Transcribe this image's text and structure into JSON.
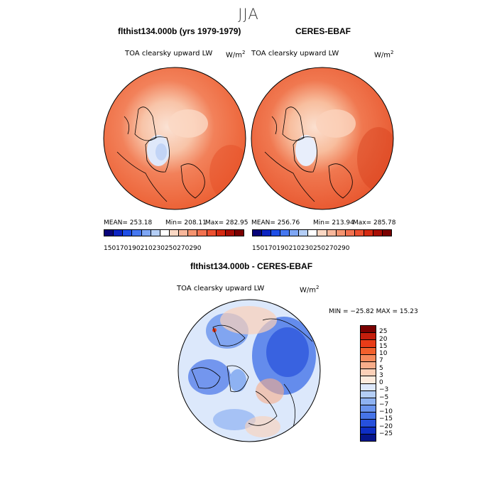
{
  "season": "JJA",
  "panels": [
    {
      "title": "flthist134.000b (yrs 1979-1979)",
      "subtitle": "TOA clearsky upward LW",
      "units": "W/m",
      "units_sup": "2",
      "stats": {
        "mean": "MEAN= 253.18",
        "min": "Min= 208.11",
        "max": "Max= 282.95"
      }
    },
    {
      "title": "CERES-EBAF",
      "subtitle": "TOA clearsky upward LW",
      "units": "W/m",
      "units_sup": "2",
      "stats": {
        "mean": "MEAN= 256.76",
        "min": "Min= 213.94",
        "max": "Max= 285.78"
      }
    }
  ],
  "abs_colorbar": {
    "colors": [
      "#08047a",
      "#0c24c2",
      "#1e4ee6",
      "#4678f0",
      "#7ea6f4",
      "#b4cef6",
      "#ffffff",
      "#fbd8c4",
      "#f8b79b",
      "#f59470",
      "#f27250",
      "#ec5030",
      "#d52a12",
      "#a80e04",
      "#7a0000"
    ],
    "tick_labels": [
      "150",
      "170",
      "190",
      "210",
      "230",
      "250",
      "270",
      "290"
    ]
  },
  "diff_panel": {
    "title": "flthist134.000b - CERES-EBAF",
    "subtitle": "TOA clearsky upward LW",
    "units": "W/m",
    "units_sup": "2",
    "minmax": "MIN = −25.82  MAX =  15.23",
    "colorbar": {
      "colors": [
        "#7a0000",
        "#c41e0c",
        "#e83c18",
        "#f2602c",
        "#f58a5c",
        "#f8ad8a",
        "#fbd0b8",
        "#fdebdd",
        "#dde8fb",
        "#b4cef6",
        "#8eb2f2",
        "#6a94ee",
        "#4674e8",
        "#2650dc",
        "#0e2ec4",
        "#06168c"
      ],
      "labels": [
        "25",
        "20",
        "15",
        "10",
        "7",
        "5",
        "3",
        "0",
        "−3",
        "−5",
        "−7",
        "−10",
        "−15",
        "−20",
        "−25"
      ]
    }
  },
  "colors": {
    "land_contour": "#000000",
    "background": "#ffffff"
  }
}
